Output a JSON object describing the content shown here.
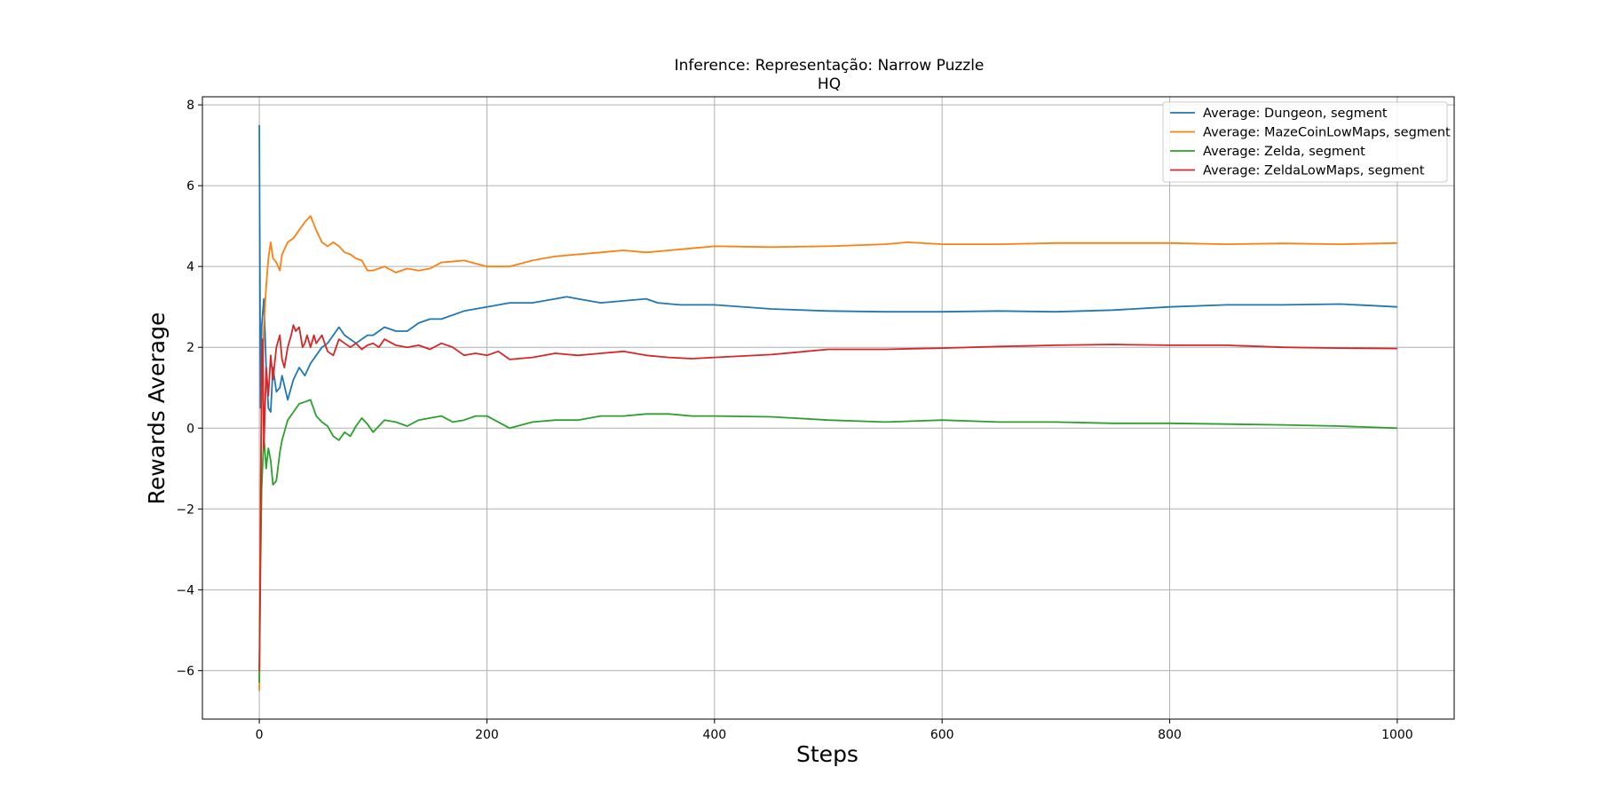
{
  "chart_data": {
    "type": "line",
    "title_line1": "Inference: Representação: Narrow Puzzle",
    "title_line2": "HQ",
    "xlabel": "Steps",
    "ylabel": "Rewards Average",
    "xlim": [
      -50,
      1050
    ],
    "ylim": [
      -7.2,
      8.2
    ],
    "xticks": [
      0,
      200,
      400,
      600,
      800,
      1000
    ],
    "yticks": [
      -6,
      -4,
      -2,
      0,
      2,
      4,
      6,
      8
    ],
    "xtick_labels": [
      "0",
      "200",
      "400",
      "600",
      "800",
      "1000"
    ],
    "ytick_labels": [
      "−6",
      "−4",
      "−2",
      "0",
      "2",
      "4",
      "6",
      "8"
    ],
    "grid": true,
    "legend_position": "top-right",
    "series": [
      {
        "name": "Average: Dungeon, segment",
        "color": "#1f77b4",
        "x": [
          0,
          1,
          2,
          4,
          6,
          8,
          10,
          12,
          15,
          18,
          20,
          25,
          30,
          35,
          40,
          45,
          50,
          55,
          60,
          65,
          70,
          75,
          80,
          85,
          90,
          95,
          100,
          110,
          120,
          130,
          140,
          150,
          160,
          180,
          200,
          220,
          240,
          260,
          270,
          280,
          300,
          320,
          340,
          350,
          370,
          400,
          450,
          500,
          550,
          600,
          650,
          700,
          750,
          800,
          850,
          900,
          950,
          1000
        ],
        "y": [
          7.5,
          0.5,
          2.5,
          3.2,
          1.5,
          0.5,
          0.4,
          1.5,
          0.9,
          1.0,
          1.3,
          0.7,
          1.2,
          1.5,
          1.3,
          1.6,
          1.8,
          2.0,
          2.1,
          2.3,
          2.5,
          2.3,
          2.2,
          2.1,
          2.2,
          2.3,
          2.3,
          2.5,
          2.4,
          2.4,
          2.6,
          2.7,
          2.7,
          2.9,
          3.0,
          3.1,
          3.1,
          3.2,
          3.25,
          3.2,
          3.1,
          3.15,
          3.2,
          3.1,
          3.05,
          3.05,
          2.95,
          2.9,
          2.88,
          2.88,
          2.9,
          2.88,
          2.92,
          3.0,
          3.05,
          3.05,
          3.07,
          3.0
        ]
      },
      {
        "name": "Average: MazeCoinLowMaps, segment",
        "color": "#ff7f0e",
        "x": [
          0,
          1,
          2,
          4,
          6,
          8,
          10,
          12,
          15,
          18,
          20,
          25,
          30,
          35,
          40,
          45,
          50,
          55,
          60,
          65,
          70,
          75,
          80,
          85,
          90,
          95,
          100,
          110,
          120,
          130,
          140,
          150,
          160,
          180,
          200,
          220,
          240,
          260,
          280,
          300,
          320,
          340,
          360,
          380,
          400,
          450,
          500,
          550,
          570,
          600,
          650,
          700,
          750,
          800,
          850,
          900,
          950,
          1000
        ],
        "y": [
          -6.5,
          -1.5,
          0.5,
          2.5,
          3.5,
          4.2,
          4.6,
          4.2,
          4.1,
          3.9,
          4.3,
          4.6,
          4.7,
          4.9,
          5.1,
          5.25,
          4.9,
          4.6,
          4.5,
          4.6,
          4.5,
          4.35,
          4.3,
          4.2,
          4.15,
          3.9,
          3.9,
          4.0,
          3.85,
          3.95,
          3.9,
          3.95,
          4.1,
          4.15,
          4.0,
          4.0,
          4.15,
          4.25,
          4.3,
          4.35,
          4.4,
          4.35,
          4.4,
          4.45,
          4.5,
          4.48,
          4.5,
          4.55,
          4.6,
          4.55,
          4.55,
          4.58,
          4.58,
          4.58,
          4.55,
          4.57,
          4.55,
          4.58
        ]
      },
      {
        "name": "Average: Zelda, segment",
        "color": "#2ca02c",
        "x": [
          0,
          1,
          2,
          4,
          6,
          8,
          10,
          12,
          15,
          18,
          20,
          25,
          30,
          35,
          40,
          45,
          50,
          55,
          60,
          65,
          70,
          75,
          80,
          85,
          90,
          95,
          100,
          110,
          120,
          130,
          140,
          150,
          160,
          170,
          180,
          190,
          200,
          210,
          220,
          240,
          260,
          280,
          300,
          320,
          340,
          360,
          380,
          400,
          450,
          500,
          550,
          600,
          650,
          700,
          750,
          800,
          850,
          900,
          950,
          1000
        ],
        "y": [
          -6.3,
          -3.5,
          -1.5,
          -0.2,
          -1.0,
          -0.5,
          -0.8,
          -1.4,
          -1.3,
          -0.6,
          -0.3,
          0.2,
          0.4,
          0.6,
          0.65,
          0.7,
          0.3,
          0.15,
          0.05,
          -0.2,
          -0.3,
          -0.1,
          -0.2,
          0.05,
          0.25,
          0.1,
          -0.1,
          0.2,
          0.15,
          0.05,
          0.2,
          0.25,
          0.3,
          0.15,
          0.2,
          0.3,
          0.3,
          0.15,
          0.0,
          0.15,
          0.2,
          0.2,
          0.3,
          0.3,
          0.35,
          0.35,
          0.3,
          0.3,
          0.28,
          0.2,
          0.15,
          0.2,
          0.15,
          0.15,
          0.12,
          0.12,
          0.1,
          0.08,
          0.05,
          0.0
        ]
      },
      {
        "name": "Average: ZeldaLowMaps, segment",
        "color": "#d62728",
        "x": [
          0,
          1,
          2,
          3,
          4,
          6,
          8,
          10,
          12,
          15,
          18,
          20,
          22,
          25,
          28,
          30,
          32,
          35,
          38,
          40,
          42,
          45,
          48,
          50,
          55,
          60,
          65,
          70,
          75,
          80,
          85,
          90,
          95,
          100,
          105,
          110,
          120,
          130,
          140,
          150,
          160,
          170,
          180,
          190,
          200,
          210,
          220,
          240,
          260,
          280,
          300,
          320,
          340,
          360,
          380,
          400,
          450,
          500,
          550,
          600,
          650,
          700,
          750,
          800,
          850,
          900,
          950,
          1000
        ],
        "y": [
          -6.0,
          -3.0,
          1.5,
          2.2,
          -0.5,
          1.5,
          0.8,
          1.8,
          1.2,
          2.0,
          2.3,
          1.7,
          1.5,
          2.0,
          2.3,
          2.55,
          2.4,
          2.5,
          2.0,
          2.1,
          2.3,
          2.0,
          2.3,
          2.1,
          2.3,
          1.9,
          1.8,
          2.2,
          2.1,
          2.0,
          2.1,
          1.95,
          2.05,
          2.1,
          2.0,
          2.2,
          2.05,
          2.0,
          2.05,
          1.95,
          2.1,
          2.0,
          1.8,
          1.85,
          1.8,
          1.9,
          1.7,
          1.75,
          1.85,
          1.8,
          1.85,
          1.9,
          1.8,
          1.75,
          1.72,
          1.75,
          1.82,
          1.95,
          1.95,
          1.98,
          2.02,
          2.05,
          2.07,
          2.05,
          2.05,
          2.0,
          1.98,
          1.97
        ]
      }
    ]
  }
}
